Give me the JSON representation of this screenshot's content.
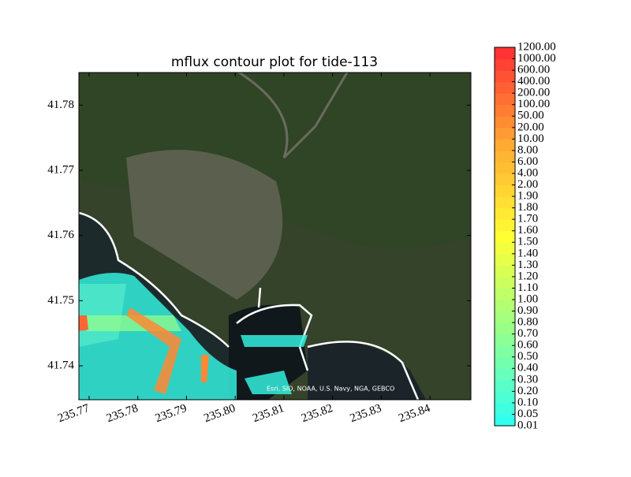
{
  "chart_data": {
    "type": "contour",
    "title": "mflux contour plot for tide-113",
    "attribution": "Esri, SIO, NOAA, U.S. Navy, NGA, GEBCO",
    "xlim": [
      235.7679,
      235.8484
    ],
    "xticks": [
      235.77,
      235.78,
      235.79,
      235.8,
      235.81,
      235.82,
      235.83,
      235.84
    ],
    "xtick_labels": [
      "235.77",
      "235.78",
      "235.79",
      "235.80",
      "235.81",
      "235.82",
      "235.83",
      "235.84"
    ],
    "ylim": [
      41.7348,
      41.785
    ],
    "yticks": [
      41.74,
      41.75,
      41.76,
      41.77,
      41.78
    ],
    "levels": [
      0.01,
      0.05,
      {
        "value": 0.1,
        "label": "0.10"
      },
      {
        "value": 0.2,
        "label": "0.20"
      },
      {
        "value": 0.3,
        "label": "0.30"
      },
      {
        "value": 0.4,
        "label": "0.40"
      },
      {
        "value": 0.5,
        "label": "0.50"
      },
      {
        "value": 0.6,
        "label": "0.60"
      },
      {
        "value": 0.7,
        "label": "0.70"
      },
      {
        "value": 0.8,
        "label": "0.80"
      },
      {
        "value": 0.9,
        "label": "0.90"
      },
      {
        "value": 1,
        "label": "1.00"
      },
      {
        "value": 1.1,
        "label": "1.10"
      },
      {
        "value": 1.2,
        "label": "1.20"
      },
      {
        "value": 1.3,
        "label": "1.30"
      },
      {
        "value": 1.4,
        "label": "1.40"
      },
      {
        "value": 1.5,
        "label": "1.50"
      },
      {
        "value": 1.6,
        "label": "1.60"
      },
      {
        "value": 1.7,
        "label": "1.70"
      },
      {
        "value": 1.8,
        "label": "1.80"
      },
      {
        "value": 1.9,
        "label": "1.90"
      },
      {
        "value": 2,
        "label": "2.00"
      },
      {
        "value": 4,
        "label": "4.00"
      },
      {
        "value": 6,
        "label": "6.00"
      },
      {
        "value": 8,
        "label": "8.00"
      },
      {
        "value": 10,
        "label": "10.00"
      },
      {
        "value": 20,
        "label": "20.00"
      },
      {
        "value": 50,
        "label": "50.00"
      },
      {
        "value": 100,
        "label": "100.00"
      },
      {
        "value": 200,
        "label": "200.00"
      },
      {
        "value": 400,
        "label": "400.00"
      },
      {
        "value": 600,
        "label": "600.00"
      },
      {
        "value": 1000,
        "label": "1000.00"
      },
      {
        "value": 1200,
        "label": "1200.00"
      }
    ],
    "colormap": [
      "#33ffee",
      "#99ff88",
      "#ffff33",
      "#ffaa33",
      "#ff3333"
    ]
  }
}
